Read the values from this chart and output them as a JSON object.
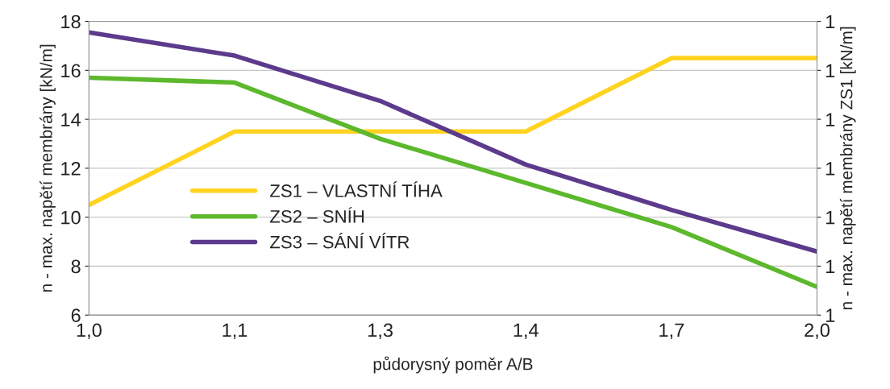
{
  "chart_data": {
    "type": "line",
    "xlabel": "půdorysný poměr A/B",
    "ylabel": "n - max. napětí membrány [kN/m]",
    "y2label": "n - max. napětí membrány ZS1 [kN/m]",
    "categories": [
      "1,0",
      "1,1",
      "1,3",
      "1,4",
      "1,7",
      "2,0"
    ],
    "series": [
      {
        "name": "ZS1 – VLASTNÍ TÍHA",
        "color": "#ffd320",
        "values": [
          10.5,
          13.5,
          13.5,
          13.5,
          16.5,
          16.5
        ]
      },
      {
        "name": "ZS2 – SNÍH",
        "color": "#5cb82c",
        "values": [
          15.7,
          15.5,
          13.2,
          11.4,
          9.6,
          7.15
        ]
      },
      {
        "name": "ZS3 – SÁNÍ VÍTR",
        "color": "#5c3a8c",
        "values": [
          17.55,
          16.6,
          14.75,
          12.15,
          10.3,
          8.6
        ]
      }
    ],
    "ylim": [
      6,
      18
    ],
    "yticks": [
      6,
      8,
      10,
      12,
      14,
      16,
      18
    ],
    "y2_categories": [
      "1",
      "1",
      "1",
      "1",
      "1",
      "1",
      "1"
    ],
    "grid": "y",
    "legend": "bottom left",
    "marker": "none",
    "line_style": "solid"
  }
}
